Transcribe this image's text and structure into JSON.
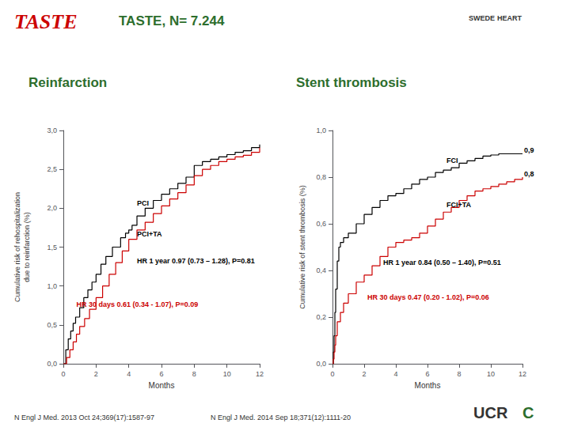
{
  "title": "TASTE, N= 7.244",
  "annotations": [
    {
      "text": "TASTE",
      "color": "#cc0000"
    },
    {
      "text": "SWEDE"
    },
    {
      "text": "HEART"
    },
    {
      "text": "UCR"
    },
    {
      "text": "C",
      "color": "#2d6e2d"
    },
    {
      "text": "N Engl J Med. 2013 Oct 24;369(17):1587-97"
    },
    {
      "text": "N Engl J Med. 2014 Sep 18;371(12):1111-20"
    }
  ],
  "chart_data": [
    {
      "type": "step",
      "title": "Reinfarction",
      "xlabel": "Months",
      "ylabel": "Cumulative risk of rehospitalization\ndue to reinfarction (%)",
      "xlim": [
        0,
        12
      ],
      "xticks": [
        0,
        2,
        4,
        6,
        8,
        10,
        12
      ],
      "ylim": [
        0,
        3.0
      ],
      "yticks": [
        {
          "value": 0.0,
          "label": "0,0"
        },
        {
          "value": 0.5,
          "label": "0,5"
        },
        {
          "value": 1.0,
          "label": "1,0"
        },
        {
          "value": 1.5,
          "label": "1,5"
        },
        {
          "value": 2.0,
          "label": "2,0"
        },
        {
          "value": 2.5,
          "label": "2,5"
        },
        {
          "value": 3.0,
          "label": "3,0"
        }
      ],
      "grid": false,
      "series": [
        {
          "color": "#000000",
          "x": [
            0,
            0.15,
            0.3,
            0.45,
            0.6,
            0.75,
            1.0,
            1.25,
            1.5,
            1.75,
            2.0,
            2.3,
            2.6,
            3.0,
            3.5,
            3.8,
            4.0,
            4.2,
            4.5,
            5.0,
            5.5,
            6.0,
            6.5,
            7.0,
            7.5,
            8.0,
            8.5,
            9.0,
            9.5,
            10.0,
            10.5,
            11.0,
            11.5,
            12.0
          ],
          "values": [
            0,
            0.18,
            0.32,
            0.42,
            0.52,
            0.6,
            0.72,
            0.85,
            0.95,
            1.05,
            1.15,
            1.28,
            1.38,
            1.5,
            1.62,
            1.68,
            1.72,
            1.78,
            1.9,
            2.0,
            2.1,
            2.18,
            2.25,
            2.32,
            2.4,
            2.55,
            2.6,
            2.63,
            2.66,
            2.69,
            2.72,
            2.74,
            2.78,
            2.82
          ]
        },
        {
          "color": "#cc0000",
          "x": [
            0,
            0.2,
            0.4,
            0.6,
            0.8,
            1.0,
            1.3,
            1.6,
            2.0,
            2.4,
            2.8,
            3.2,
            3.6,
            4.0,
            4.5,
            5.0,
            5.5,
            6.0,
            6.5,
            7.0,
            7.5,
            8.0,
            8.5,
            9.0,
            9.5,
            10.0,
            10.5,
            11.0,
            11.5,
            12.0
          ],
          "values": [
            0,
            0.08,
            0.18,
            0.28,
            0.38,
            0.48,
            0.58,
            0.7,
            0.85,
            1.0,
            1.15,
            1.3,
            1.45,
            1.6,
            1.72,
            1.82,
            1.93,
            2.03,
            2.12,
            2.2,
            2.3,
            2.42,
            2.5,
            2.55,
            2.6,
            2.63,
            2.66,
            2.68,
            2.72,
            2.78
          ]
        }
      ],
      "annotations": [
        {
          "text": "PCI",
          "x": 4.5,
          "y": 2.02,
          "color": "#000000"
        },
        {
          "text": "PCI+TA",
          "x": 4.5,
          "y": 1.62,
          "color": "#000000"
        },
        {
          "text": "HR 1 year 0.97 (0.73 – 1.28), P=0.81",
          "x": 4.5,
          "y": 1.28,
          "color": "#000000"
        },
        {
          "text": "HR 30 days 0.61 (0.34 - 1.07), P=0.09",
          "x": 0.8,
          "y": 0.72,
          "color": "#cc0000"
        }
      ]
    },
    {
      "type": "step",
      "title": "Stent thrombosis",
      "xlabel": "Months",
      "ylabel": "Cumulative risk of stent thrombosis (%)",
      "xlim": [
        0,
        12
      ],
      "xticks": [
        0,
        2,
        4,
        6,
        8,
        10,
        12
      ],
      "ylim": [
        0,
        1.0
      ],
      "yticks": [
        {
          "value": 0.0,
          "label": "0,0"
        },
        {
          "value": 0.2,
          "label": "0,2"
        },
        {
          "value": 0.4,
          "label": "0,4"
        },
        {
          "value": 0.6,
          "label": "0,6"
        },
        {
          "value": 0.8,
          "label": "0,8"
        },
        {
          "value": 1.0,
          "label": "1,0"
        }
      ],
      "grid": false,
      "series": [
        {
          "color": "#000000",
          "x": [
            0,
            0.05,
            0.1,
            0.15,
            0.2,
            0.3,
            0.4,
            0.5,
            0.7,
            1.0,
            1.5,
            2.0,
            2.5,
            3.0,
            3.5,
            4.0,
            4.5,
            5.0,
            5.5,
            6.0,
            6.5,
            7.0,
            7.5,
            8.0,
            8.5,
            9.0,
            9.5,
            10.0,
            10.5,
            11.0,
            11.5,
            12.0
          ],
          "values": [
            0,
            0.05,
            0.12,
            0.22,
            0.32,
            0.44,
            0.5,
            0.52,
            0.54,
            0.56,
            0.6,
            0.64,
            0.67,
            0.7,
            0.72,
            0.73,
            0.75,
            0.77,
            0.79,
            0.8,
            0.82,
            0.83,
            0.84,
            0.86,
            0.87,
            0.88,
            0.89,
            0.895,
            0.9,
            0.9,
            0.9,
            0.9
          ]
        },
        {
          "color": "#cc0000",
          "x": [
            0,
            0.05,
            0.1,
            0.15,
            0.2,
            0.3,
            0.5,
            0.7,
            1.0,
            1.5,
            2.0,
            2.5,
            3.0,
            3.5,
            4.0,
            4.5,
            5.0,
            5.5,
            6.0,
            6.5,
            7.0,
            7.5,
            8.0,
            8.5,
            9.0,
            9.5,
            10.0,
            10.5,
            11.0,
            11.5,
            12.0
          ],
          "values": [
            0,
            0.02,
            0.05,
            0.08,
            0.12,
            0.18,
            0.22,
            0.26,
            0.3,
            0.35,
            0.38,
            0.42,
            0.46,
            0.5,
            0.52,
            0.53,
            0.54,
            0.56,
            0.59,
            0.62,
            0.65,
            0.67,
            0.7,
            0.72,
            0.74,
            0.75,
            0.76,
            0.77,
            0.78,
            0.79,
            0.8
          ]
        }
      ],
      "annotations": [
        {
          "text": "FCI",
          "x": 7.2,
          "y": 0.855,
          "color": "#000000"
        },
        {
          "text": "FCI+TA",
          "x": 7.2,
          "y": 0.665,
          "color": "#000000"
        },
        {
          "text": "0,9",
          "x": 12.1,
          "y": 0.9,
          "color": "#000000"
        },
        {
          "text": "0,8",
          "x": 12.1,
          "y": 0.8,
          "color": "#000000"
        },
        {
          "text": "HR 1 year 0.84 (0.50 – 1.40), P=0.51",
          "x": 3.2,
          "y": 0.42,
          "color": "#000000"
        },
        {
          "text": "HR 30 days 0.47 (0.20 - 1.02), P=0.06",
          "x": 2.2,
          "y": 0.27,
          "color": "#cc0000"
        }
      ]
    }
  ]
}
